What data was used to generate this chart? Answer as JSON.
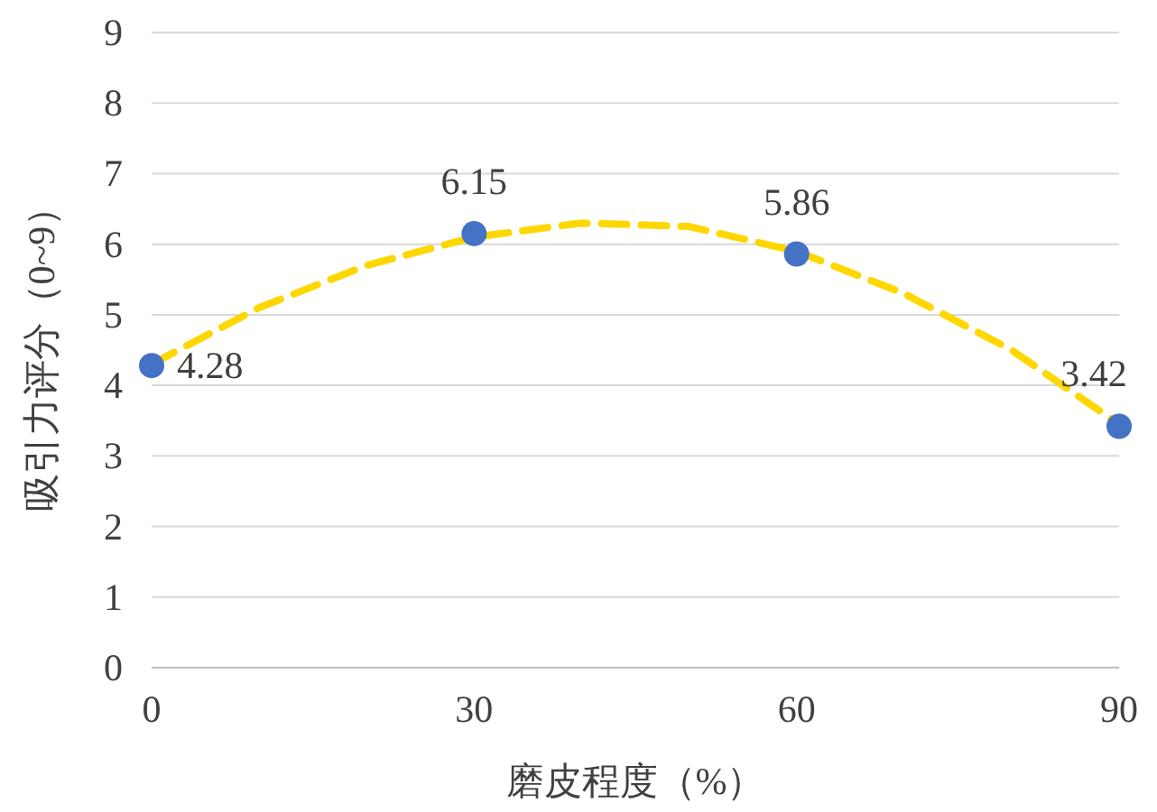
{
  "chart_data": {
    "type": "scatter",
    "xlabel": "磨皮程度（%）",
    "ylabel": "吸引力评分（0~9）",
    "xlim": [
      0,
      90
    ],
    "xticks": [
      0,
      30,
      60,
      90
    ],
    "ylim": [
      0,
      9
    ],
    "yticks": [
      0,
      1,
      2,
      3,
      4,
      5,
      6,
      7,
      8,
      9
    ],
    "grid": "y",
    "series": [
      {
        "type": "line",
        "color": "#ffd700",
        "line_style": "dashed",
        "marker": "none",
        "x": [
          0,
          10,
          20,
          30,
          40,
          50,
          60,
          70,
          80,
          90
        ],
        "values": [
          4.3,
          5.1,
          5.7,
          6.1,
          6.3,
          6.25,
          5.9,
          5.3,
          4.5,
          3.45
        ]
      },
      {
        "type": "scatter",
        "color": "#4472c4",
        "marker": "circle",
        "x": [
          0,
          30,
          60,
          90
        ],
        "values": [
          4.28,
          6.15,
          5.86,
          3.42
        ],
        "value_labels": [
          "4.28",
          "6.15",
          "5.86",
          "3.42"
        ]
      }
    ]
  }
}
